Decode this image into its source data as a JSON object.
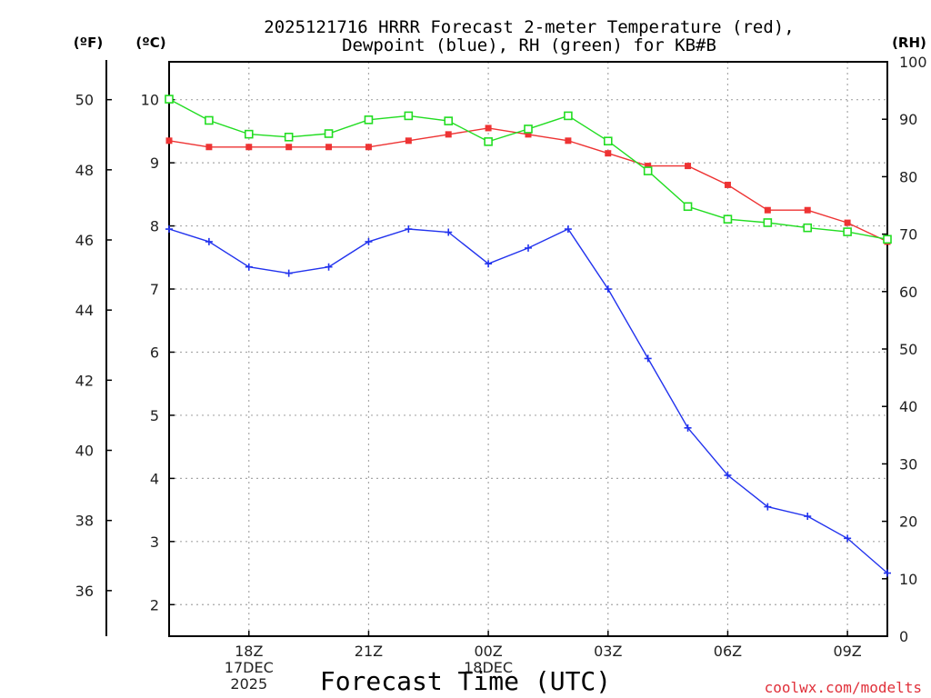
{
  "chart_data": {
    "type": "line",
    "title_line1": "2025121716 HRRR Forecast 2-meter Temperature (red),",
    "title_line2": "Dewpoint (blue), RH (green) for KB#B",
    "xlabel": "Forecast Time (UTC)",
    "credit": "coolwx.com/modelts",
    "unit_f": "(ºF)",
    "unit_c": "(ºC)",
    "unit_rh": "(RH)",
    "x_range": [
      16,
      34
    ],
    "x": [
      16,
      17,
      18,
      19,
      20,
      21,
      22,
      23,
      24,
      25,
      26,
      27,
      28,
      29,
      30,
      31,
      32,
      33,
      34
    ],
    "x_ticks": [
      {
        "x": 18,
        "lines": [
          "18Z",
          "17DEC",
          "2025"
        ]
      },
      {
        "x": 21,
        "lines": [
          "21Z"
        ]
      },
      {
        "x": 24,
        "lines": [
          "00Z",
          "18DEC"
        ]
      },
      {
        "x": 27,
        "lines": [
          "03Z"
        ]
      },
      {
        "x": 30,
        "lines": [
          "06Z"
        ]
      },
      {
        "x": 33,
        "lines": [
          "09Z"
        ]
      }
    ],
    "y_celsius": {
      "range": [
        1.5,
        10.6
      ],
      "ticks": [
        2,
        3,
        4,
        5,
        6,
        7,
        8,
        9,
        10
      ]
    },
    "y_fahrenheit": {
      "ticks": [
        36,
        38,
        40,
        42,
        44,
        46,
        48,
        50
      ]
    },
    "y_rh": {
      "range": [
        0,
        100
      ],
      "ticks": [
        0,
        10,
        20,
        30,
        40,
        50,
        60,
        70,
        80,
        90,
        100
      ]
    },
    "series": [
      {
        "name": "Temperature",
        "color": "#ee3333",
        "axis": "celsius",
        "marker": "filled-square",
        "values": [
          9.35,
          9.25,
          9.25,
          9.25,
          9.25,
          9.25,
          9.35,
          9.45,
          9.55,
          9.45,
          9.35,
          9.15,
          8.95,
          8.95,
          8.65,
          8.25,
          8.25,
          8.05,
          7.75
        ]
      },
      {
        "name": "Dewpoint",
        "color": "#2233ee",
        "axis": "celsius",
        "marker": "plus",
        "values": [
          7.95,
          7.75,
          7.35,
          7.25,
          7.35,
          7.75,
          7.95,
          7.9,
          7.4,
          7.65,
          7.95,
          7.0,
          5.9,
          4.8,
          4.05,
          3.55,
          3.4,
          3.05,
          2.5
        ]
      },
      {
        "name": "RH",
        "color": "#22dd22",
        "axis": "rh",
        "marker": "open-square",
        "values": [
          93.5,
          89.8,
          87.4,
          86.9,
          87.5,
          89.9,
          90.6,
          89.7,
          86.1,
          88.3,
          90.6,
          86.2,
          81.0,
          74.8,
          72.6,
          72.0,
          71.1,
          70.4,
          69.1
        ]
      }
    ]
  }
}
